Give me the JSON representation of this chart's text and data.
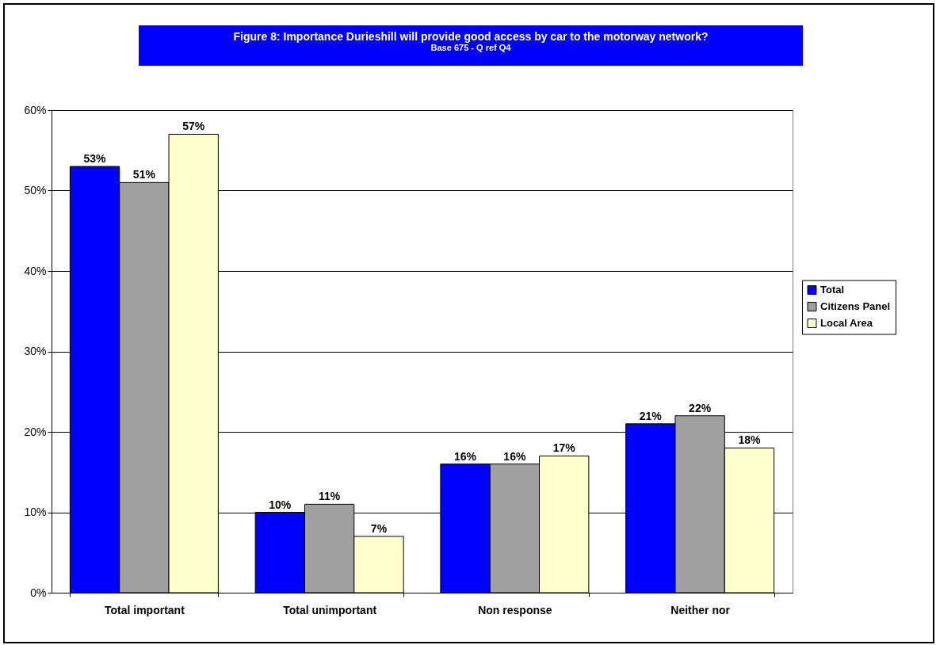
{
  "chart_data": {
    "type": "bar",
    "title": "Figure 8: Importance Durieshill will provide good access by car to the motorway network?",
    "subtitle": "Base 675 - Q ref Q4",
    "categories": [
      "Total important",
      "Total unimportant",
      "Non response",
      "Neither nor"
    ],
    "series": [
      {
        "name": "Total",
        "color": "#0000ff",
        "values": [
          53,
          10,
          16,
          21
        ],
        "value_labels": [
          "53%",
          "10%",
          "16%",
          "21%"
        ]
      },
      {
        "name": "Citizens Panel",
        "color": "#a0a0a0",
        "values": [
          51,
          11,
          16,
          22
        ],
        "value_labels": [
          "51%",
          "11%",
          "16%",
          "22%"
        ]
      },
      {
        "name": "Local Area",
        "color": "#ffffcc",
        "values": [
          57,
          7,
          17,
          18
        ],
        "value_labels": [
          "57%",
          "7%",
          "17%",
          "18%"
        ]
      }
    ],
    "ylim": [
      0,
      60
    ],
    "yticks": [
      {
        "value": 0,
        "label": "0%"
      },
      {
        "value": 10,
        "label": "10%"
      },
      {
        "value": 20,
        "label": "20%"
      },
      {
        "value": 30,
        "label": "30%"
      },
      {
        "value": 40,
        "label": "40%"
      },
      {
        "value": 50,
        "label": "50%"
      },
      {
        "value": 60,
        "label": "60%"
      }
    ],
    "grid": "y",
    "legend": "right"
  }
}
